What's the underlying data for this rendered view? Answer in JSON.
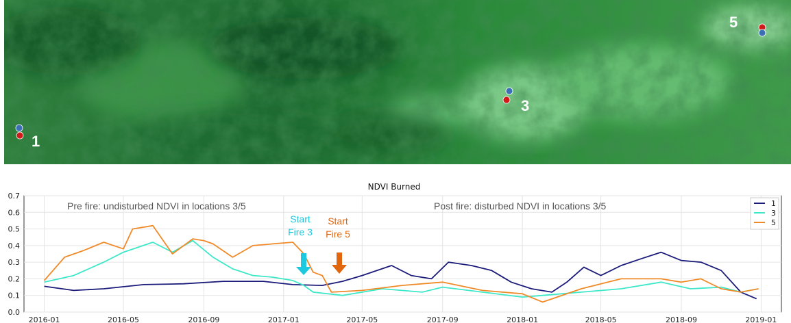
{
  "map": {
    "points": [
      {
        "label": "1",
        "colors": [
          "#3b6fb6",
          "#d11a1a"
        ]
      },
      {
        "label": "3",
        "colors": [
          "#3b6fb6",
          "#d11a1a"
        ]
      },
      {
        "label": "5",
        "colors": [
          "#d11a1a",
          "#3b6fb6"
        ]
      }
    ]
  },
  "chart_data": {
    "type": "line",
    "title": "NDVI Burned",
    "xlabel": "",
    "ylabel": "",
    "ylim": [
      0.0,
      0.7
    ],
    "yticks": [
      "0.0",
      "0.1",
      "0.2",
      "0.3",
      "0.4",
      "0.5",
      "0.6",
      "0.7"
    ],
    "xticks": [
      "2016-01",
      "2016-05",
      "2016-09",
      "2017-01",
      "2017-05",
      "2017-09",
      "2018-01",
      "2018-05",
      "2018-09",
      "2019-01"
    ],
    "grid": true,
    "legend_position": "top-right",
    "annotations": {
      "pre_fire": "Pre fire: undisturbed NDVI in locations 3/5",
      "post_fire": "Post fire: disturbed NDVI in locations 3/5",
      "start_fire_3": [
        "Start",
        "Fire 3"
      ],
      "start_fire_5": [
        "Start",
        "Fire 5"
      ],
      "start_fire_3_color": "#1ec8de",
      "start_fire_5_color": "#e0670e"
    },
    "series": [
      {
        "name": "1",
        "color": "#1a1a7a",
        "x": [
          "2016-01-01",
          "2016-02-15",
          "2016-04-01",
          "2016-06-01",
          "2016-08-01",
          "2016-10-01",
          "2016-12-01",
          "2017-01-15",
          "2017-03-01",
          "2017-04-01",
          "2017-05-01",
          "2017-06-15",
          "2017-07-15",
          "2017-08-15",
          "2017-09-10",
          "2017-10-15",
          "2017-11-15",
          "2017-12-15",
          "2018-01-15",
          "2018-02-15",
          "2018-03-10",
          "2018-04-05",
          "2018-05-01",
          "2018-06-01",
          "2018-07-01",
          "2018-08-01",
          "2018-09-01",
          "2018-10-01",
          "2018-11-01",
          "2018-12-01",
          "2018-12-25"
        ],
        "y": [
          0.155,
          0.13,
          0.14,
          0.165,
          0.17,
          0.185,
          0.185,
          0.165,
          0.16,
          0.185,
          0.22,
          0.28,
          0.22,
          0.2,
          0.3,
          0.28,
          0.25,
          0.18,
          0.14,
          0.12,
          0.18,
          0.27,
          0.22,
          0.28,
          0.32,
          0.36,
          0.31,
          0.3,
          0.25,
          0.12,
          0.08
        ]
      },
      {
        "name": "3",
        "color": "#3de8c8",
        "x": [
          "2016-01-01",
          "2016-02-15",
          "2016-04-01",
          "2016-05-01",
          "2016-06-15",
          "2016-07-15",
          "2016-08-15",
          "2016-09-15",
          "2016-10-15",
          "2016-11-15",
          "2016-12-15",
          "2017-01-15",
          "2017-02-01",
          "2017-02-15",
          "2017-04-01",
          "2017-06-01",
          "2017-08-01",
          "2017-09-01",
          "2017-11-01",
          "2018-01-01",
          "2018-02-01",
          "2018-04-01",
          "2018-06-01",
          "2018-08-01",
          "2018-09-15",
          "2018-11-01",
          "2018-12-01",
          "2018-12-28"
        ],
        "y": [
          0.18,
          0.22,
          0.3,
          0.36,
          0.42,
          0.36,
          0.43,
          0.33,
          0.26,
          0.22,
          0.21,
          0.19,
          0.16,
          0.12,
          0.1,
          0.14,
          0.12,
          0.15,
          0.12,
          0.09,
          0.1,
          0.12,
          0.14,
          0.18,
          0.14,
          0.15,
          0.12,
          0.14
        ]
      },
      {
        "name": "5",
        "color": "#f08a28",
        "x": [
          "2016-01-01",
          "2016-02-01",
          "2016-03-01",
          "2016-04-01",
          "2016-05-01",
          "2016-05-15",
          "2016-06-15",
          "2016-07-15",
          "2016-08-15",
          "2016-09-01",
          "2016-09-15",
          "2016-10-15",
          "2016-11-15",
          "2016-12-15",
          "2017-01-15",
          "2017-02-01",
          "2017-02-15",
          "2017-03-01",
          "2017-03-15",
          "2017-05-01",
          "2017-07-01",
          "2017-09-01",
          "2017-11-01",
          "2018-01-01",
          "2018-02-01",
          "2018-04-01",
          "2018-06-01",
          "2018-08-01",
          "2018-09-01",
          "2018-10-01",
          "2018-11-01",
          "2018-12-01",
          "2018-12-28"
        ],
        "y": [
          0.19,
          0.33,
          0.37,
          0.42,
          0.38,
          0.5,
          0.52,
          0.35,
          0.44,
          0.43,
          0.41,
          0.33,
          0.4,
          0.41,
          0.42,
          0.35,
          0.24,
          0.22,
          0.12,
          0.13,
          0.16,
          0.18,
          0.13,
          0.11,
          0.06,
          0.14,
          0.2,
          0.2,
          0.18,
          0.2,
          0.14,
          0.12,
          0.14
        ]
      }
    ]
  }
}
